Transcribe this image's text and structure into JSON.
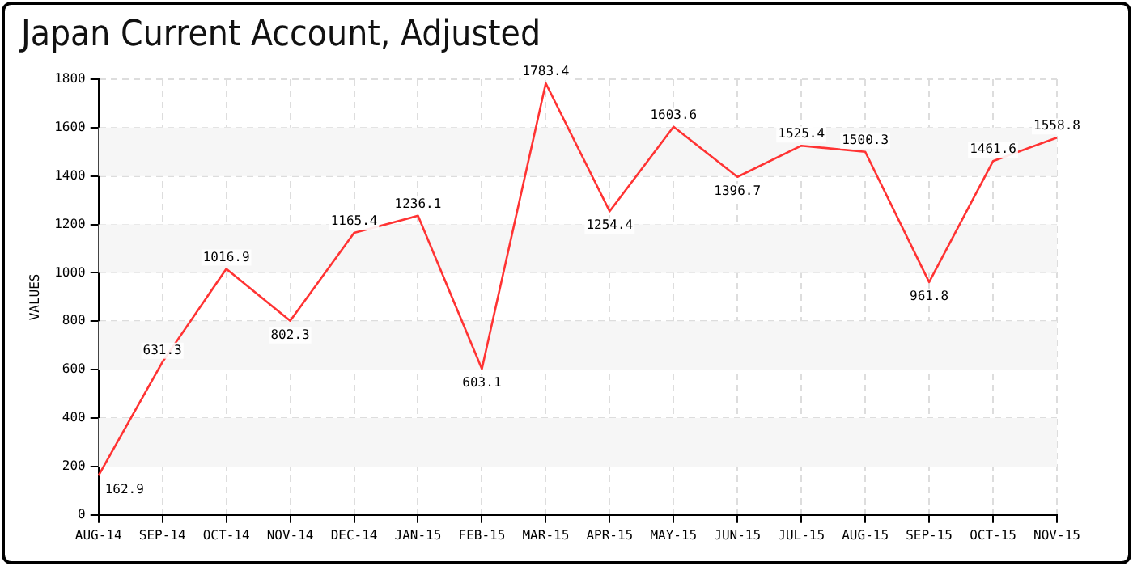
{
  "chart_data": {
    "type": "line",
    "title": "Japan Current Account, Adjusted",
    "ylabel": "VALUES",
    "categories": [
      "AUG-14",
      "SEP-14",
      "OCT-14",
      "NOV-14",
      "DEC-14",
      "JAN-15",
      "FEB-15",
      "MAR-15",
      "APR-15",
      "MAY-15",
      "JUN-15",
      "JUL-15",
      "AUG-15",
      "SEP-15",
      "OCT-15",
      "NOV-15"
    ],
    "series": [
      {
        "color": "#ff3333",
        "values": [
          162.9,
          631.3,
          1016.9,
          802.3,
          1165.4,
          1236.1,
          603.1,
          1783.4,
          1254.4,
          1603.6,
          1396.7,
          1525.4,
          1500.3,
          961.8,
          1461.6,
          1558.8
        ]
      }
    ],
    "ylim": [
      0,
      1800
    ],
    "yticks": [
      0,
      200,
      400,
      600,
      800,
      1000,
      1200,
      1400,
      1600,
      1800
    ],
    "grid": true,
    "data_labels": true,
    "marker": "none",
    "line_style": "solid",
    "legend": false
  }
}
